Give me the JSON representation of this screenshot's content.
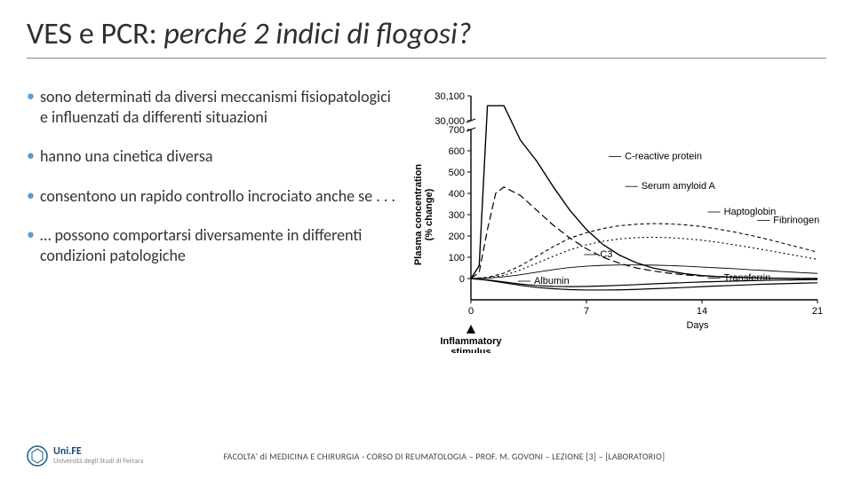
{
  "title_prefix": "VES e PCR: ",
  "title_italic": "perché 2 indici di flogosi?",
  "bullets": [
    "sono determinati da diversi meccanismi fisiopatologici e influenzati da differenti situazioni",
    "hanno una cinetica diversa",
    "consentono un rapido controllo incrociato anche se . . .",
    "… possono comportarsi diversamente in differenti condizioni patologiche"
  ],
  "bullet_color": "#5b9bd5",
  "chart": {
    "type": "line",
    "background_color": "#ffffff",
    "axis_color": "#000000",
    "font_family": "Arial",
    "label_fontsize": 11,
    "ylabel": "Plasma concentration\n(% change)",
    "xlabel": "Days",
    "x_extra_label": "Inflammatory\nstimulus",
    "x_arrow_at": 0,
    "xlim": [
      0,
      21
    ],
    "xticks": [
      0,
      7,
      14,
      21
    ],
    "ylim_low": [
      -100,
      700
    ],
    "ytick_low": [
      0,
      100,
      200,
      300,
      400,
      500,
      600,
      700
    ],
    "ylim_high": [
      30000,
      30100
    ],
    "ytick_high": [
      30000,
      30100
    ],
    "ytick_high_labels": [
      "30,000",
      "30,100"
    ],
    "axis_break": true,
    "series": [
      {
        "name": "C-reactive protein",
        "label_xy": [
          9,
          560
        ],
        "style": "solid",
        "width": 1.4,
        "points": [
          [
            0,
            0
          ],
          [
            0.5,
            60
          ],
          [
            1,
            700
          ],
          [
            2,
            700
          ],
          [
            3,
            650
          ],
          [
            4,
            550
          ],
          [
            5,
            430
          ],
          [
            6,
            320
          ],
          [
            7,
            230
          ],
          [
            8,
            160
          ],
          [
            9,
            110
          ],
          [
            10,
            75
          ],
          [
            11,
            50
          ],
          [
            12,
            35
          ],
          [
            13,
            22
          ],
          [
            14,
            14
          ],
          [
            15,
            9
          ],
          [
            16,
            6
          ],
          [
            17,
            4
          ],
          [
            18,
            2
          ],
          [
            19,
            1
          ],
          [
            20,
            0
          ],
          [
            21,
            0
          ]
        ],
        "peak_above_break": true,
        "peak_x_range": [
          1,
          2
        ]
      },
      {
        "name": "Serum amyloid A",
        "label_xy": [
          10,
          420
        ],
        "style": "dash-long",
        "width": 1.2,
        "points": [
          [
            0,
            0
          ],
          [
            0.5,
            30
          ],
          [
            1,
            230
          ],
          [
            1.5,
            400
          ],
          [
            2,
            430
          ],
          [
            3,
            390
          ],
          [
            4,
            320
          ],
          [
            5,
            250
          ],
          [
            6,
            190
          ],
          [
            7,
            140
          ],
          [
            8,
            100
          ],
          [
            9,
            72
          ],
          [
            10,
            50
          ],
          [
            11,
            36
          ],
          [
            12,
            25
          ],
          [
            13,
            17
          ],
          [
            14,
            12
          ],
          [
            15,
            8
          ],
          [
            16,
            5
          ],
          [
            17,
            3
          ],
          [
            18,
            2
          ],
          [
            19,
            1
          ],
          [
            20,
            0
          ],
          [
            21,
            0
          ]
        ]
      },
      {
        "name": "Haptoglobin",
        "label_xy": [
          15,
          300
        ],
        "style": "dash-short",
        "width": 1.1,
        "points": [
          [
            0,
            0
          ],
          [
            1,
            5
          ],
          [
            2,
            25
          ],
          [
            3,
            60
          ],
          [
            4,
            105
          ],
          [
            5,
            150
          ],
          [
            6,
            190
          ],
          [
            7,
            215
          ],
          [
            8,
            235
          ],
          [
            9,
            248
          ],
          [
            10,
            255
          ],
          [
            11,
            258
          ],
          [
            12,
            257
          ],
          [
            13,
            252
          ],
          [
            14,
            244
          ],
          [
            15,
            232
          ],
          [
            16,
            218
          ],
          [
            17,
            202
          ],
          [
            18,
            184
          ],
          [
            19,
            164
          ],
          [
            20,
            144
          ],
          [
            21,
            124
          ]
        ]
      },
      {
        "name": "Fibrinogen",
        "label_xy": [
          18,
          260
        ],
        "style": "dot",
        "width": 1.1,
        "points": [
          [
            0,
            0
          ],
          [
            1,
            3
          ],
          [
            2,
            15
          ],
          [
            3,
            40
          ],
          [
            4,
            72
          ],
          [
            5,
            105
          ],
          [
            6,
            135
          ],
          [
            7,
            158
          ],
          [
            8,
            175
          ],
          [
            9,
            186
          ],
          [
            10,
            192
          ],
          [
            11,
            194
          ],
          [
            12,
            192
          ],
          [
            13,
            187
          ],
          [
            14,
            180
          ],
          [
            15,
            170
          ],
          [
            16,
            158
          ],
          [
            17,
            145
          ],
          [
            18,
            132
          ],
          [
            19,
            118
          ],
          [
            20,
            104
          ],
          [
            21,
            90
          ]
        ]
      },
      {
        "name": "C3",
        "label_xy": [
          7.5,
          100
        ],
        "style": "solid-thin",
        "width": 0.9,
        "points": [
          [
            0,
            0
          ],
          [
            1,
            2
          ],
          [
            2,
            8
          ],
          [
            3,
            18
          ],
          [
            4,
            30
          ],
          [
            5,
            42
          ],
          [
            6,
            52
          ],
          [
            7,
            58
          ],
          [
            8,
            62
          ],
          [
            9,
            64
          ],
          [
            10,
            64
          ],
          [
            11,
            63
          ],
          [
            12,
            61
          ],
          [
            13,
            58
          ],
          [
            14,
            54
          ],
          [
            15,
            50
          ],
          [
            16,
            46
          ],
          [
            17,
            41
          ],
          [
            18,
            37
          ],
          [
            19,
            32
          ],
          [
            20,
            28
          ],
          [
            21,
            24
          ]
        ]
      },
      {
        "name": "Transferrin",
        "label_xy": [
          15,
          -10
        ],
        "style": "solid",
        "width": 1.2,
        "points": [
          [
            0,
            0
          ],
          [
            1,
            -6
          ],
          [
            2,
            -16
          ],
          [
            3,
            -26
          ],
          [
            4,
            -33
          ],
          [
            5,
            -37
          ],
          [
            6,
            -38
          ],
          [
            7,
            -37
          ],
          [
            8,
            -35
          ],
          [
            9,
            -32
          ],
          [
            10,
            -29
          ],
          [
            11,
            -25
          ],
          [
            12,
            -22
          ],
          [
            13,
            -19
          ],
          [
            14,
            -16
          ],
          [
            15,
            -14
          ],
          [
            16,
            -12
          ],
          [
            17,
            -10
          ],
          [
            18,
            -8
          ],
          [
            19,
            -7
          ],
          [
            20,
            -6
          ],
          [
            21,
            -5
          ]
        ]
      },
      {
        "name": "Albumin",
        "label_xy": [
          3.5,
          -25
        ],
        "style": "solid",
        "width": 1.2,
        "points": [
          [
            0,
            0
          ],
          [
            1,
            -8
          ],
          [
            2,
            -20
          ],
          [
            3,
            -32
          ],
          [
            4,
            -42
          ],
          [
            5,
            -48
          ],
          [
            6,
            -52
          ],
          [
            7,
            -54
          ],
          [
            8,
            -54
          ],
          [
            9,
            -53
          ],
          [
            10,
            -51
          ],
          [
            11,
            -48
          ],
          [
            12,
            -45
          ],
          [
            13,
            -42
          ],
          [
            14,
            -38
          ],
          [
            15,
            -35
          ],
          [
            16,
            -32
          ],
          [
            17,
            -29
          ],
          [
            18,
            -26
          ],
          [
            19,
            -24
          ],
          [
            20,
            -22
          ],
          [
            21,
            -20
          ]
        ]
      }
    ],
    "dash_patterns": {
      "solid": "",
      "dash-long": "8 4",
      "dash-short": "4 3",
      "dot": "2 3",
      "solid-thin": ""
    }
  },
  "footer": {
    "uni_name": "Uni.FE",
    "uni_sub": "Università degli Studi di Ferrara",
    "text": "FACOLTA' di MEDICINA E CHIRURGIA - CORSO DI REUMATOLOGIA – PROF. M. GOVONI – LEZIONE [3] – [LABORATORIO]",
    "logo_color": "#1a5a8a"
  }
}
